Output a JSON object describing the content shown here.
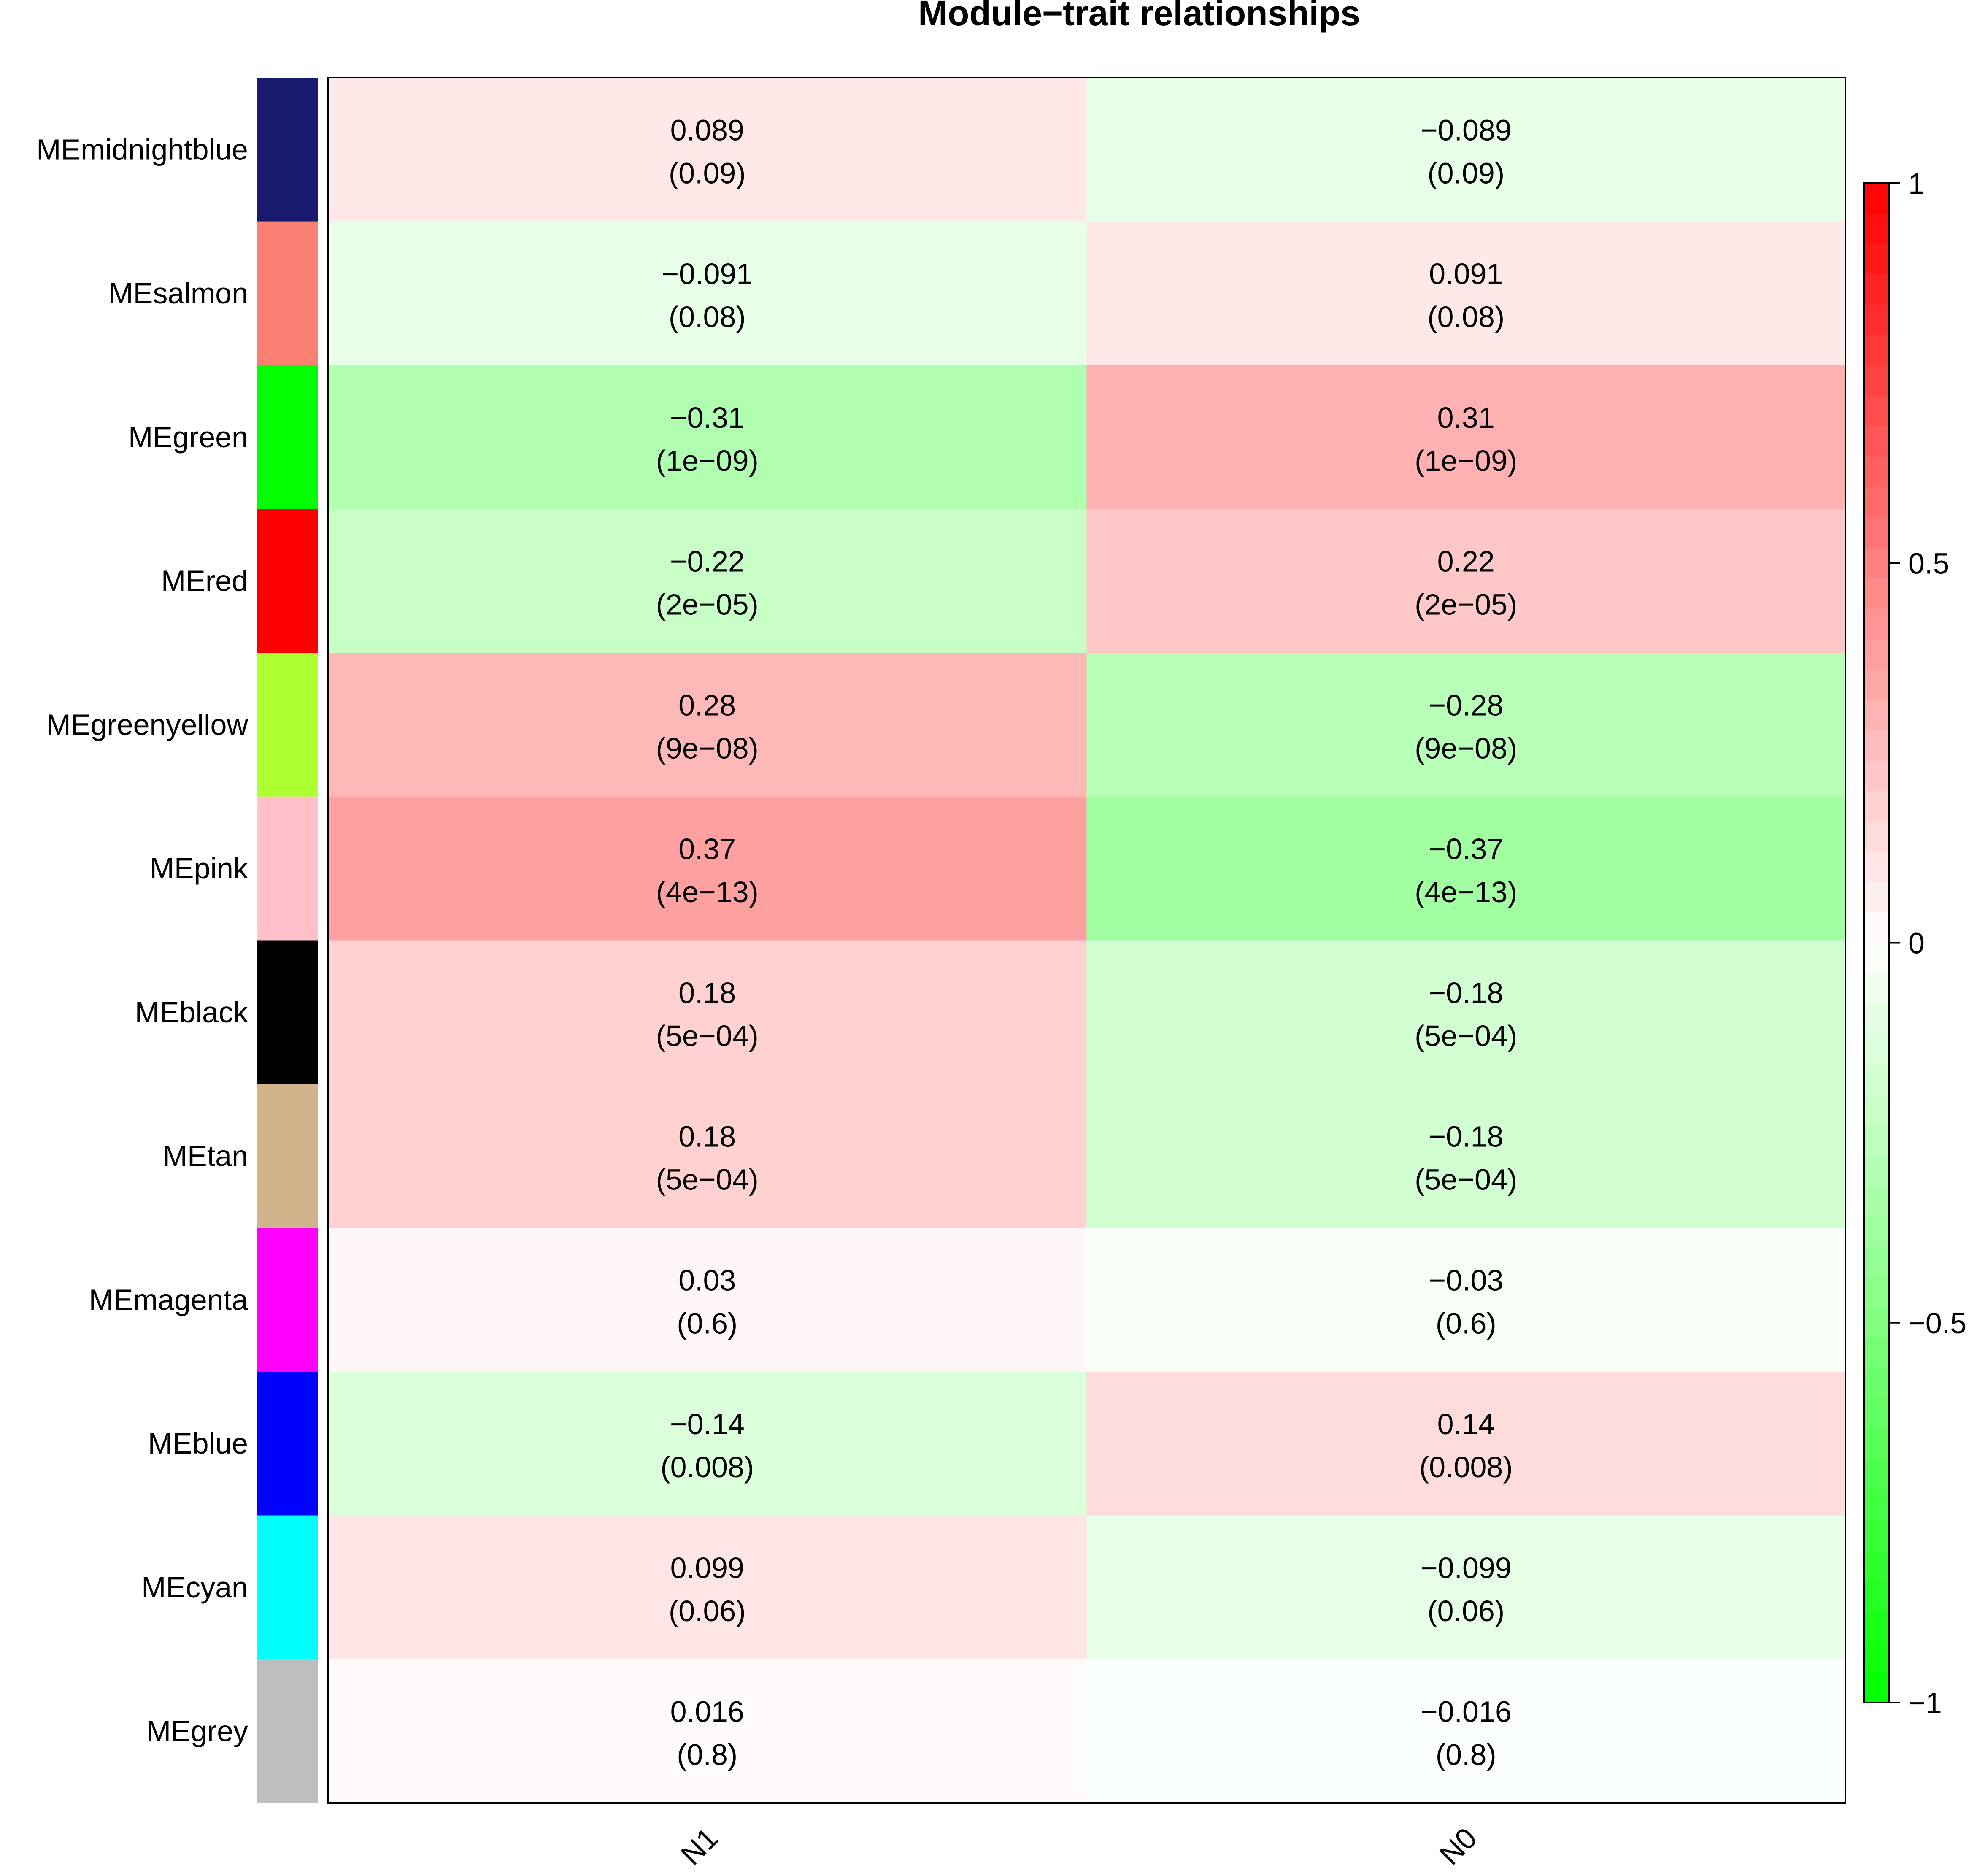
{
  "chart_data": {
    "type": "heatmap",
    "title": "Module−trait relationships",
    "columns": [
      "N1",
      "N0"
    ],
    "rows": [
      {
        "label": "MEmidnightblue",
        "module_color": "#191970",
        "values": [
          0.089,
          -0.089
        ],
        "value_labels": [
          "0.089",
          "−0.089"
        ],
        "pvalues": [
          "(0.09)",
          "(0.09)"
        ]
      },
      {
        "label": "MEsalmon",
        "module_color": "#FA8072",
        "values": [
          -0.091,
          0.091
        ],
        "value_labels": [
          "−0.091",
          "0.091"
        ],
        "pvalues": [
          "(0.08)",
          "(0.08)"
        ]
      },
      {
        "label": "MEgreen",
        "module_color": "#00FF00",
        "values": [
          -0.31,
          0.31
        ],
        "value_labels": [
          "−0.31",
          "0.31"
        ],
        "pvalues": [
          "(1e−09)",
          "(1e−09)"
        ]
      },
      {
        "label": "MEred",
        "module_color": "#FF0000",
        "values": [
          -0.22,
          0.22
        ],
        "value_labels": [
          "−0.22",
          "0.22"
        ],
        "pvalues": [
          "(2e−05)",
          "(2e−05)"
        ]
      },
      {
        "label": "MEgreenyellow",
        "module_color": "#ADFF2F",
        "values": [
          0.28,
          -0.28
        ],
        "value_labels": [
          "0.28",
          "−0.28"
        ],
        "pvalues": [
          "(9e−08)",
          "(9e−08)"
        ]
      },
      {
        "label": "MEpink",
        "module_color": "#FFC0CB",
        "values": [
          0.37,
          -0.37
        ],
        "value_labels": [
          "0.37",
          "−0.37"
        ],
        "pvalues": [
          "(4e−13)",
          "(4e−13)"
        ]
      },
      {
        "label": "MEblack",
        "module_color": "#000000",
        "values": [
          0.18,
          -0.18
        ],
        "value_labels": [
          "0.18",
          "−0.18"
        ],
        "pvalues": [
          "(5e−04)",
          "(5e−04)"
        ]
      },
      {
        "label": "MEtan",
        "module_color": "#D2B48C",
        "values": [
          0.18,
          -0.18
        ],
        "value_labels": [
          "0.18",
          "−0.18"
        ],
        "pvalues": [
          "(5e−04)",
          "(5e−04)"
        ]
      },
      {
        "label": "MEmagenta",
        "module_color": "#FF00FF",
        "values": [
          0.03,
          -0.03
        ],
        "value_labels": [
          "0.03",
          "−0.03"
        ],
        "pvalues": [
          "(0.6)",
          "(0.6)"
        ]
      },
      {
        "label": "MEblue",
        "module_color": "#0000FF",
        "values": [
          -0.14,
          0.14
        ],
        "value_labels": [
          "−0.14",
          "0.14"
        ],
        "pvalues": [
          "(0.008)",
          "(0.008)"
        ]
      },
      {
        "label": "MEcyan",
        "module_color": "#00FFFF",
        "values": [
          0.099,
          -0.099
        ],
        "value_labels": [
          "0.099",
          "−0.099"
        ],
        "pvalues": [
          "(0.06)",
          "(0.06)"
        ]
      },
      {
        "label": "MEgrey",
        "module_color": "#BEBEBE",
        "values": [
          0.016,
          -0.016
        ],
        "value_labels": [
          "0.016",
          "−0.016"
        ],
        "pvalues": [
          "(0.8)",
          "(0.8)"
        ]
      }
    ],
    "color_scale": {
      "min": -1,
      "max": 1,
      "low_color": "#00FF00",
      "mid_color": "#FFFFFF",
      "high_color": "#FF0000",
      "ticks": [
        1,
        0.5,
        0,
        -0.5,
        -1
      ],
      "tick_labels": [
        "1",
        "0.5",
        "0",
        "−0.5",
        "−1"
      ],
      "legend_position": "right"
    }
  }
}
